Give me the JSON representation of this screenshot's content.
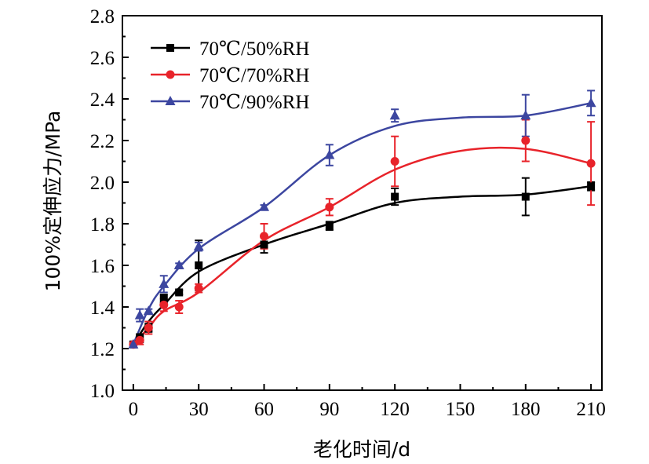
{
  "chart_data": {
    "type": "line",
    "title": "",
    "xlabel": "老化时间/d",
    "ylabel": "100%定伸应力/MPa",
    "xlim": [
      -5,
      215
    ],
    "ylim": [
      1.0,
      2.8
    ],
    "xticks": [
      0,
      30,
      60,
      90,
      120,
      150,
      180,
      210
    ],
    "yticks": [
      1.0,
      1.2,
      1.4,
      1.6,
      1.8,
      2.0,
      2.2,
      2.4,
      2.6,
      2.8
    ],
    "xtick_labels": [
      "0",
      "30",
      "60",
      "90",
      "120",
      "150",
      "180",
      "210"
    ],
    "ytick_labels": [
      "1.0",
      "1.2",
      "1.4",
      "1.6",
      "1.8",
      "2.0",
      "2.2",
      "2.4",
      "2.6",
      "2.8"
    ],
    "grid": false,
    "legend_position": "top-left",
    "x": [
      0,
      3,
      7,
      14,
      21,
      30,
      60,
      90,
      120,
      180,
      210
    ],
    "series": [
      {
        "name": "70℃/50%RH",
        "color": "#000000",
        "marker": "square",
        "values": [
          1.22,
          1.25,
          1.3,
          1.44,
          1.47,
          1.6,
          1.7,
          1.79,
          1.93,
          1.93,
          1.98
        ],
        "errors": [
          0.01,
          0.02,
          0.02,
          0.02,
          0.01,
          0.12,
          0.04,
          0.02,
          0.04,
          0.09,
          0.02
        ]
      },
      {
        "name": "70℃/70%RH",
        "color": "#e8232a",
        "marker": "circle",
        "values": [
          1.22,
          1.24,
          1.3,
          1.41,
          1.4,
          1.49,
          1.74,
          1.88,
          2.1,
          2.2,
          2.09
        ],
        "errors": [
          0.01,
          0.02,
          0.03,
          0.03,
          0.03,
          0.02,
          0.06,
          0.04,
          0.12,
          0.1,
          0.2
        ]
      },
      {
        "name": "70℃/90%RH",
        "color": "#3c46a0",
        "marker": "triangle",
        "values": [
          1.22,
          1.36,
          1.38,
          1.51,
          1.6,
          1.69,
          1.88,
          2.13,
          2.32,
          2.32,
          2.38
        ],
        "errors": [
          0.01,
          0.03,
          0.01,
          0.04,
          0.01,
          0.02,
          0.01,
          0.05,
          0.03,
          0.1,
          0.06
        ]
      }
    ],
    "fits": [
      {
        "name": "70℃/50%RH",
        "x": [
          0,
          7,
          14,
          30,
          60,
          90,
          120,
          150,
          180,
          210
        ],
        "y": [
          1.22,
          1.33,
          1.41,
          1.57,
          1.7,
          1.8,
          1.9,
          1.93,
          1.94,
          1.98
        ]
      },
      {
        "name": "70℃/70%RH",
        "x": [
          0,
          7,
          14,
          30,
          60,
          90,
          120,
          150,
          180,
          210
        ],
        "y": [
          1.22,
          1.3,
          1.38,
          1.47,
          1.72,
          1.88,
          2.06,
          2.15,
          2.16,
          2.09
        ]
      },
      {
        "name": "70℃/90%RH",
        "x": [
          0,
          7,
          14,
          30,
          60,
          90,
          120,
          150,
          180,
          210
        ],
        "y": [
          1.22,
          1.39,
          1.5,
          1.68,
          1.88,
          2.13,
          2.27,
          2.31,
          2.32,
          2.38
        ]
      }
    ]
  }
}
